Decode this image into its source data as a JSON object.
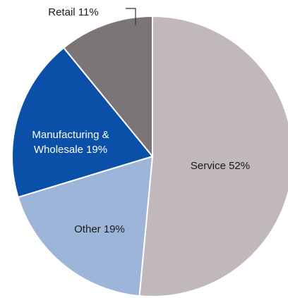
{
  "chart_data": {
    "type": "pie",
    "start_angle_deg": 0,
    "direction": "clockwise",
    "slices": [
      {
        "label": "Service 52%",
        "value": 52,
        "color": "#c0b8ba",
        "label_color": "#1a1a1a"
      },
      {
        "label": "Other 19%",
        "value": 19,
        "color": "#9db5d9",
        "label_color": "#1a1a1a"
      },
      {
        "label": "Manufacturing &\nWholesale 19%",
        "value": 19,
        "color": "#0a4fa8",
        "label_color": "#ffffff"
      },
      {
        "label": "Retail 11%",
        "value": 11,
        "color": "#7c7577",
        "label_color": "#1a1a1a"
      }
    ]
  }
}
